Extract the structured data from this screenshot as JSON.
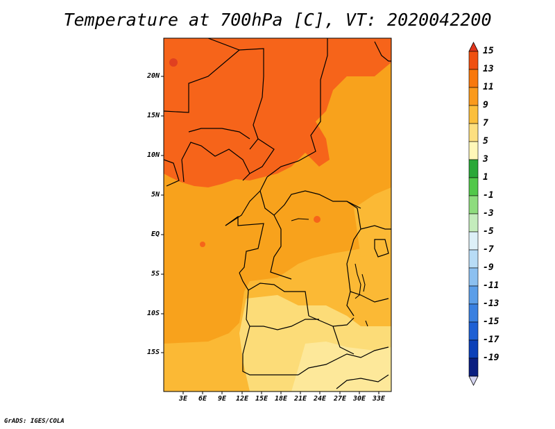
{
  "title": "Temperature at 700hPa [C], VT: 2020042200",
  "credit": "GrADS: IGES/COLA",
  "map": {
    "lat_labels": [
      "20N",
      "15N",
      "10N",
      "5N",
      "EQ",
      "5S",
      "10S",
      "15S"
    ],
    "lon_labels": [
      "3E",
      "6E",
      "9E",
      "12E",
      "15E",
      "18E",
      "21E",
      "24E",
      "27E",
      "30E",
      "33E"
    ]
  },
  "colorbar": {
    "labels": [
      "15",
      "13",
      "11",
      "9",
      "7",
      "5",
      "3",
      "1",
      "-1",
      "-3",
      "-5",
      "-7",
      "-9",
      "-11",
      "-13",
      "-15",
      "-17",
      "-19"
    ],
    "colors": [
      "#e0341c",
      "#f05010",
      "#f8780c",
      "#fa9a1c",
      "#fbbf3c",
      "#fddf80",
      "#fff7b8",
      "#2aa838",
      "#52c84a",
      "#8edc7e",
      "#c4ecbc",
      "#ddf0f8",
      "#b8dcf6",
      "#8cc0f0",
      "#5c9ee8",
      "#3a80e0",
      "#1e60d4",
      "#0c40b8",
      "#0a1e80",
      "#d4d4f0"
    ]
  },
  "colors": {
    "region_11_13": "#f6641a",
    "region_9_11": "#f8a21c",
    "region_7_9": "#fbb935",
    "region_5_7": "#fcdc78",
    "region_3_5": "#fde89a",
    "borders": "#000000"
  }
}
